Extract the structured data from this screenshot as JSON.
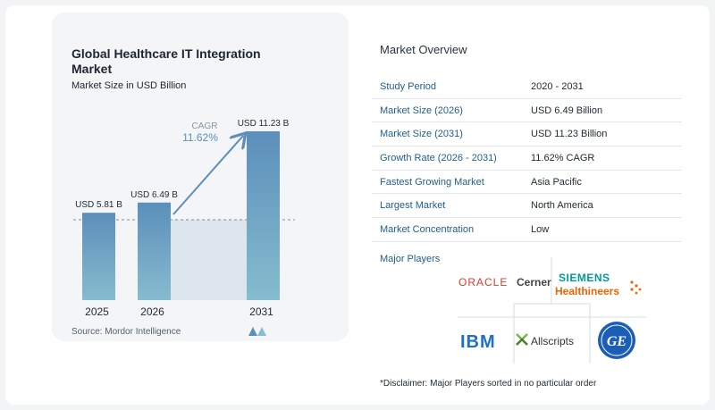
{
  "chart": {
    "title": "Global Healthcare IT Integration Market",
    "subtitle": "Market Size in USD Billion",
    "source": "Source:  Mordor Intelligence",
    "cagr_label": "CAGR",
    "cagr_value": "11.62%"
  },
  "chart_data": {
    "type": "bar",
    "categories": [
      "2025",
      "2026",
      "2031"
    ],
    "values": [
      5.81,
      6.49,
      11.23
    ],
    "value_labels": [
      "USD 5.81 B",
      "USD 6.49 B",
      "USD 11.23 B"
    ],
    "ylim": [
      0,
      12
    ],
    "annotations": [
      "CAGR 11.62%"
    ],
    "colors": {
      "bar_top": "#5b8fba",
      "bar_bottom": "#86bccf",
      "arrow": "#5b8fba",
      "band": "#dde6ee"
    }
  },
  "overview": {
    "title": "Market Overview",
    "rows": [
      {
        "label": "Study Period",
        "value": "2020 - 2031"
      },
      {
        "label": "Market Size (2026)",
        "value": "USD 6.49 Billion"
      },
      {
        "label": "Market Size (2031)",
        "value": "USD 11.23 Billion"
      },
      {
        "label": "Growth Rate (2026 - 2031)",
        "value": "11.62% CAGR"
      },
      {
        "label": "Fastest Growing Market",
        "value": "Asia Pacific"
      },
      {
        "label": "Largest Market",
        "value": "North America"
      },
      {
        "label": "Market Concentration",
        "value": "Low"
      }
    ],
    "players_title": "Major Players",
    "players": {
      "oracle": "ORACLE",
      "cerner": "Cerner",
      "siemens_1": "SIEMENS",
      "siemens_2": "Healthineers",
      "ibm": "IBM",
      "allscripts": "Allscripts",
      "ge": "GE"
    },
    "disclaimer": "*Disclaimer: Major Players sorted in no particular order"
  }
}
